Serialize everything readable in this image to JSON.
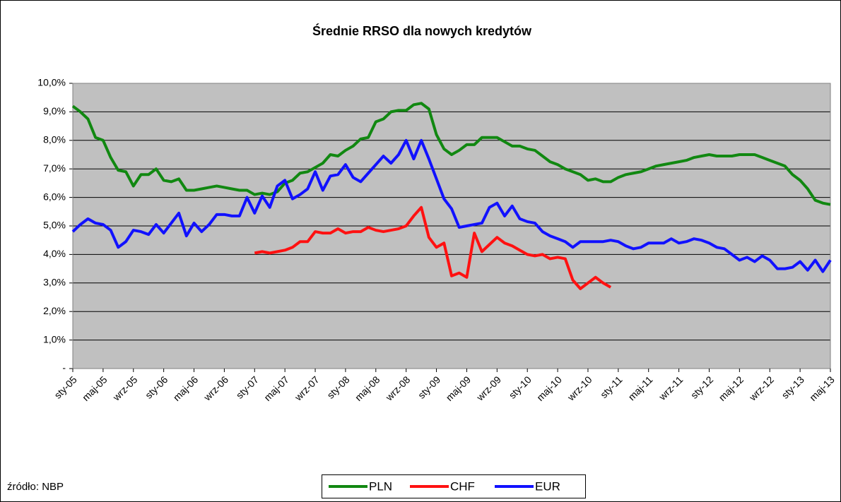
{
  "chart_data": {
    "type": "line",
    "title": "Średnie RRSO dla nowych kredytów",
    "source": "źródło: NBP",
    "categories": [
      "sty-05",
      null,
      null,
      null,
      "maj-05",
      null,
      null,
      null,
      "wrz-05",
      null,
      null,
      null,
      "sty-06",
      null,
      null,
      null,
      "maj-06",
      null,
      null,
      null,
      "wrz-06",
      null,
      null,
      null,
      "sty-07",
      null,
      null,
      null,
      "maj-07",
      null,
      null,
      null,
      "wrz-07",
      null,
      null,
      null,
      "sty-08",
      null,
      null,
      null,
      "maj-08",
      null,
      null,
      null,
      "wrz-08",
      null,
      null,
      null,
      "sty-09",
      null,
      null,
      null,
      "maj-09",
      null,
      null,
      null,
      "wrz-09",
      null,
      null,
      null,
      "sty-10",
      null,
      null,
      null,
      "maj-10",
      null,
      null,
      null,
      "wrz-10",
      null,
      null,
      null,
      "sty-11",
      null,
      null,
      null,
      "maj-11",
      null,
      null,
      null,
      "wrz-11",
      null,
      null,
      null,
      "sty-12",
      null,
      null,
      null,
      "maj-12",
      null,
      null,
      null,
      "wrz-12",
      null,
      null,
      null,
      "sty-13",
      null,
      null,
      null,
      "maj-13"
    ],
    "series": [
      {
        "name": "PLN",
        "color": "#118811",
        "values": [
          9.2,
          9.0,
          8.75,
          8.1,
          8.0,
          7.4,
          6.95,
          6.9,
          6.4,
          6.8,
          6.8,
          7.0,
          6.6,
          6.55,
          6.65,
          6.25,
          6.25,
          6.3,
          6.35,
          6.4,
          6.35,
          6.3,
          6.25,
          6.25,
          6.1,
          6.15,
          6.1,
          6.2,
          6.5,
          6.6,
          6.85,
          6.9,
          7.05,
          7.2,
          7.5,
          7.45,
          7.65,
          7.8,
          8.05,
          8.1,
          8.65,
          8.75,
          9.0,
          9.05,
          9.05,
          9.25,
          9.3,
          9.1,
          8.2,
          7.7,
          7.5,
          7.65,
          7.85,
          7.85,
          8.1,
          8.1,
          8.1,
          7.95,
          7.8,
          7.8,
          7.7,
          7.65,
          7.45,
          7.25,
          7.15,
          7.0,
          6.9,
          6.8,
          6.6,
          6.65,
          6.55,
          6.55,
          6.7,
          6.8,
          6.85,
          6.9,
          7.0,
          7.1,
          7.15,
          7.2,
          7.25,
          7.3,
          7.4,
          7.45,
          7.5,
          7.45,
          7.45,
          7.45,
          7.5,
          7.5,
          7.5,
          7.4,
          7.3,
          7.2,
          7.1,
          6.8,
          6.6,
          6.3,
          5.9,
          5.8,
          5.75
        ]
      },
      {
        "name": "CHF",
        "color": "#ff1111",
        "values": [
          null,
          null,
          null,
          null,
          null,
          null,
          null,
          null,
          null,
          null,
          null,
          null,
          null,
          null,
          null,
          null,
          null,
          null,
          null,
          null,
          null,
          null,
          null,
          null,
          4.05,
          4.1,
          4.05,
          4.1,
          4.15,
          4.25,
          4.45,
          4.45,
          4.8,
          4.75,
          4.75,
          4.9,
          4.75,
          4.8,
          4.8,
          4.95,
          4.85,
          4.8,
          4.85,
          4.9,
          5.0,
          5.35,
          5.65,
          4.6,
          4.25,
          4.4,
          3.25,
          3.35,
          3.2,
          4.75,
          4.1,
          4.35,
          4.6,
          4.4,
          4.3,
          4.15,
          4.0,
          3.95,
          4.0,
          3.85,
          3.9,
          3.85,
          3.1,
          2.8,
          3.0,
          3.2,
          3.0,
          2.85,
          null,
          null,
          null,
          null,
          null,
          null,
          null,
          null,
          null,
          null,
          null,
          null,
          null,
          null,
          null,
          null,
          null,
          null,
          null,
          null,
          null,
          null,
          null,
          null,
          null,
          null,
          null,
          null,
          null
        ]
      },
      {
        "name": "EUR",
        "color": "#1111ff",
        "values": [
          4.8,
          5.05,
          5.25,
          5.1,
          5.05,
          4.85,
          4.25,
          4.45,
          4.85,
          4.8,
          4.7,
          5.05,
          4.75,
          5.1,
          5.45,
          4.65,
          5.1,
          4.8,
          5.05,
          5.4,
          5.4,
          5.35,
          5.35,
          6.0,
          5.45,
          6.05,
          5.65,
          6.4,
          6.6,
          5.95,
          6.1,
          6.3,
          6.9,
          6.25,
          6.75,
          6.8,
          7.15,
          6.7,
          6.55,
          6.85,
          7.15,
          7.45,
          7.2,
          7.5,
          8.0,
          7.35,
          8.0,
          7.35,
          6.65,
          5.95,
          5.6,
          4.95,
          5.0,
          5.05,
          5.1,
          5.65,
          5.8,
          5.35,
          5.7,
          5.25,
          5.15,
          5.1,
          4.8,
          4.65,
          4.55,
          4.45,
          4.25,
          4.45,
          4.45,
          4.45,
          4.45,
          4.5,
          4.45,
          4.3,
          4.2,
          4.25,
          4.4,
          4.4,
          4.4,
          4.55,
          4.4,
          4.45,
          4.55,
          4.5,
          4.4,
          4.25,
          4.2,
          4.0,
          3.8,
          3.9,
          3.75,
          3.95,
          3.8,
          3.5,
          3.5,
          3.55,
          3.75,
          3.45,
          3.8,
          3.4,
          3.8
        ]
      }
    ],
    "ylim": [
      0,
      10
    ],
    "yticks": [
      {
        "value": 0,
        "label": "-"
      },
      {
        "value": 1,
        "label": "1,0%"
      },
      {
        "value": 2,
        "label": "2,0%"
      },
      {
        "value": 3,
        "label": "3,0%"
      },
      {
        "value": 4,
        "label": "4,0%"
      },
      {
        "value": 5,
        "label": "5,0%"
      },
      {
        "value": 6,
        "label": "6,0%"
      },
      {
        "value": 7,
        "label": "7,0%"
      },
      {
        "value": 8,
        "label": "8,0%"
      },
      {
        "value": 9,
        "label": "9,0%"
      },
      {
        "value": 10,
        "label": "10,0%"
      }
    ],
    "grid": true,
    "plot_background": "#c0c0c0",
    "legend": "bottom"
  }
}
